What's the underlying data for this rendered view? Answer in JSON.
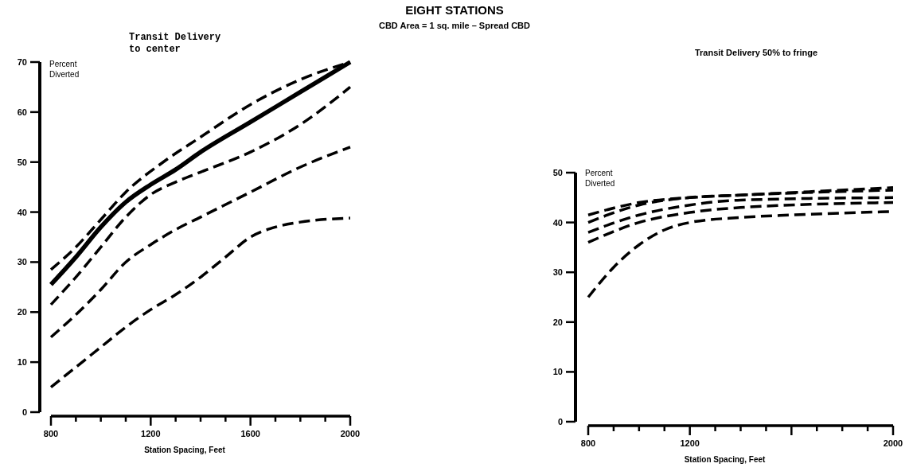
{
  "chart_data": [
    {
      "type": "line",
      "title": "Transit Delivery\nto center",
      "annotations": [
        "EIGHT STATIONS",
        "CBD Area = 1 sq. mile – Spread CBD"
      ],
      "ylabel": "Percent Diverted",
      "xlabel": "Station Spacing, Feet",
      "xlim": [
        800,
        2000
      ],
      "ylim": [
        0,
        70
      ],
      "xticks": [
        800,
        {
          "value": 900,
          "label": null
        },
        {
          "value": 1000,
          "label": null
        },
        {
          "value": 1100,
          "label": null
        },
        1200,
        {
          "value": 1300,
          "label": null
        },
        {
          "value": 1400,
          "label": null
        },
        {
          "value": 1500,
          "label": null
        },
        1600,
        {
          "value": 1700,
          "label": null
        },
        {
          "value": 1800,
          "label": null
        },
        {
          "value": 1900,
          "label": null
        },
        2000
      ],
      "yticks": [
        0,
        10,
        20,
        30,
        40,
        50,
        60,
        70
      ],
      "grid": false,
      "marker": "none",
      "line_style": "dashed",
      "series": [
        {
          "color": "#000000",
          "x": [
            800,
            900,
            1000,
            1100,
            1250,
            1400,
            1600,
            1800,
            2000
          ],
          "values": [
            28.5,
            33,
            38.5,
            44,
            50,
            55,
            61.5,
            66.5,
            70
          ]
        },
        {
          "color": "#000000",
          "line_style": "solid",
          "x": [
            800,
            900,
            1000,
            1100,
            1200,
            1300,
            1400,
            1600,
            1800,
            2000
          ],
          "values": [
            25.5,
            31,
            37,
            42,
            45.5,
            48.5,
            52,
            58,
            64,
            70
          ]
        },
        {
          "color": "#000000",
          "x": [
            800,
            900,
            1000,
            1100,
            1200,
            1300,
            1400,
            1600,
            1800,
            2000
          ],
          "values": [
            21.5,
            27,
            33,
            39,
            43.5,
            46,
            48,
            52,
            57.5,
            65
          ]
        },
        {
          "color": "#000000",
          "x": [
            800,
            900,
            1000,
            1100,
            1200,
            1300,
            1400,
            1600,
            1800,
            2000
          ],
          "values": [
            15,
            19.5,
            24.5,
            30,
            33.5,
            36.5,
            39,
            44,
            49,
            53
          ]
        },
        {
          "color": "#000000",
          "x": [
            800,
            900,
            1000,
            1100,
            1200,
            1300,
            1400,
            1500,
            1600,
            1700,
            1800,
            2000
          ],
          "values": [
            5,
            9,
            13,
            17,
            20.5,
            23.5,
            27,
            31,
            35,
            37,
            38,
            38.8
          ]
        }
      ]
    },
    {
      "type": "line",
      "title": "Transit Delivery  50% to fringe",
      "ylabel": "Percent Diverted",
      "xlabel": "Station Spacing, Feet",
      "xlim": [
        800,
        2000
      ],
      "ylim": [
        0,
        50
      ],
      "xticks": [
        800,
        {
          "value": 900,
          "label": null
        },
        {
          "value": 1000,
          "label": null
        },
        {
          "value": 1100,
          "label": null
        },
        1200,
        {
          "value": 1300,
          "label": null
        },
        {
          "value": 1400,
          "label": null
        },
        {
          "value": 1500,
          "label": null
        },
        {
          "value": 1600,
          "label": null
        },
        {
          "value": 1700,
          "label": null
        },
        {
          "value": 1800,
          "label": null
        },
        {
          "value": 1900,
          "label": null
        },
        2000
      ],
      "yticks": [
        0,
        10,
        20,
        30,
        40,
        50
      ],
      "grid": false,
      "marker": "none",
      "line_style": "dashed",
      "series": [
        {
          "color": "#000000",
          "x": [
            800,
            1000,
            1200,
            1400,
            2000
          ],
          "values": [
            41.5,
            44,
            45,
            45.5,
            47
          ]
        },
        {
          "color": "#000000",
          "x": [
            800,
            1000,
            1200,
            1400,
            2000
          ],
          "values": [
            40,
            43.5,
            45,
            45.5,
            46.5
          ]
        },
        {
          "color": "#000000",
          "x": [
            800,
            1000,
            1200,
            1400,
            2000
          ],
          "values": [
            38,
            41.5,
            43.5,
            44.5,
            45
          ]
        },
        {
          "color": "#000000",
          "x": [
            800,
            1000,
            1200,
            1400,
            2000
          ],
          "values": [
            36,
            40,
            42,
            43,
            44
          ]
        },
        {
          "color": "#000000",
          "x": [
            800,
            900,
            1000,
            1100,
            1200,
            1400,
            1600,
            2000
          ],
          "values": [
            25,
            31,
            35.5,
            38.5,
            40,
            41,
            41.5,
            42.2
          ]
        }
      ]
    }
  ]
}
